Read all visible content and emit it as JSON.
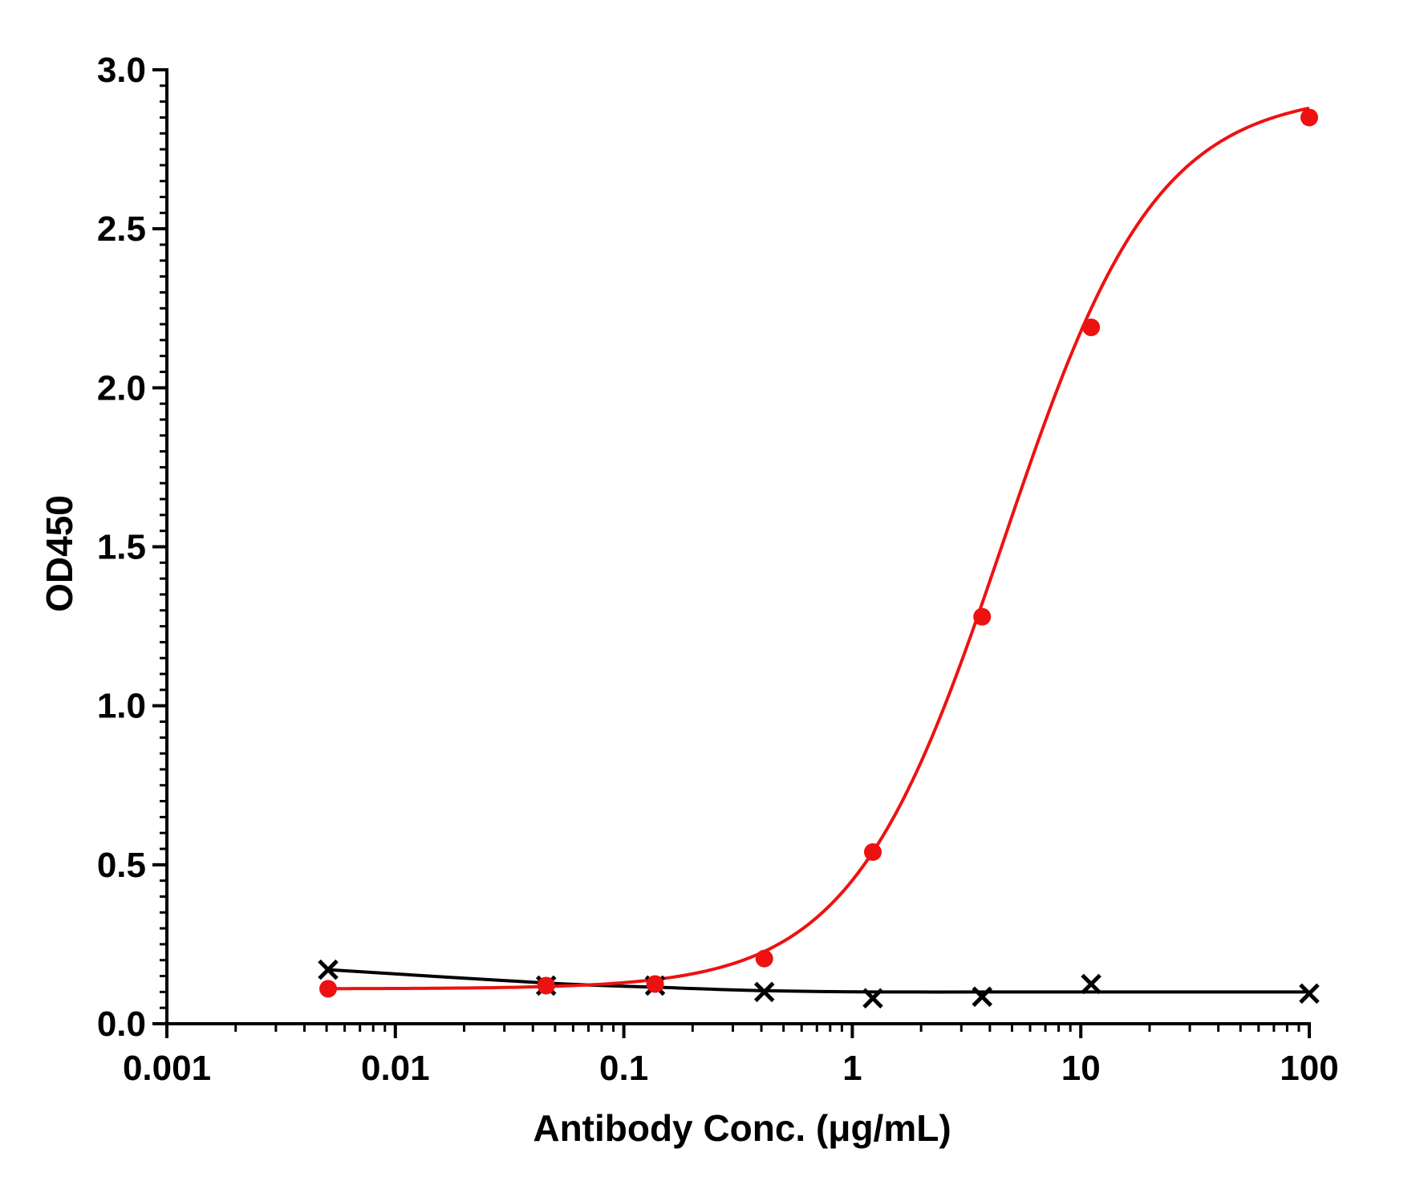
{
  "chart_data": {
    "type": "scatter",
    "title": "",
    "xlabel": "Antibody Conc. (μg/mL)",
    "ylabel": "OD450",
    "x_scale": "log",
    "xlim": [
      0.001,
      100
    ],
    "ylim": [
      0,
      3.0
    ],
    "x_ticks": [
      "0.001",
      "0.01",
      "0.1",
      "1",
      "10",
      "100"
    ],
    "y_ticks": [
      "0.0",
      "0.5",
      "1.0",
      "1.5",
      "2.0",
      "2.5",
      "3.0"
    ],
    "grid": false,
    "legend": "none",
    "series": [
      {
        "marker": "circle",
        "color": "#ee1111",
        "line": "sigmoid-fit",
        "x": [
          0.00508,
          0.0457,
          0.137,
          0.412,
          1.23,
          3.7,
          11.1,
          100
        ],
        "y": [
          0.11,
          0.12,
          0.125,
          0.205,
          0.54,
          1.28,
          2.19,
          2.85
        ]
      },
      {
        "marker": "x",
        "color": "#000000",
        "line": "fit",
        "x": [
          0.00508,
          0.0457,
          0.137,
          0.412,
          1.23,
          3.7,
          11.1,
          100
        ],
        "y": [
          0.17,
          0.12,
          0.12,
          0.1,
          0.08,
          0.085,
          0.125,
          0.095
        ]
      }
    ]
  }
}
